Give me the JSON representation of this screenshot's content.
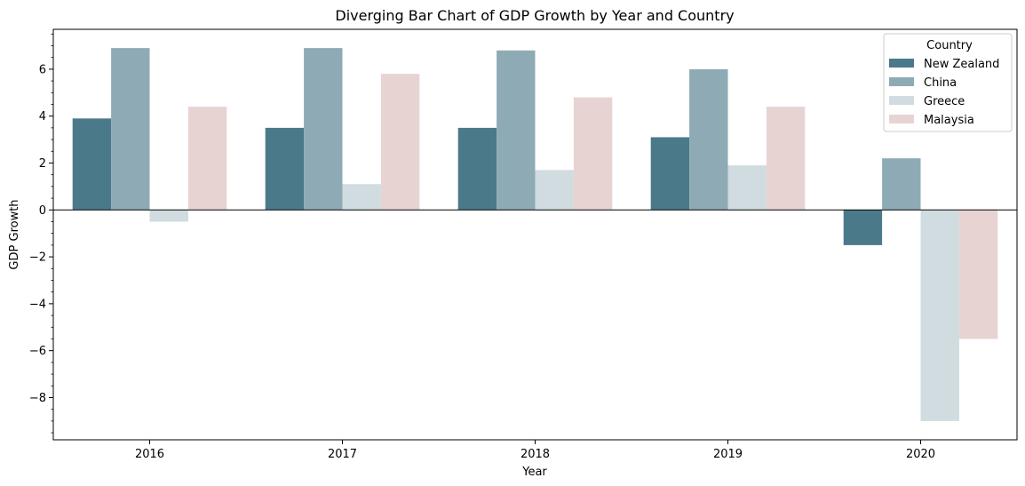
{
  "chart_data": {
    "type": "bar",
    "title": "Diverging Bar Chart of GDP Growth by Year and Country",
    "xlabel": "Year",
    "ylabel": "GDP Growth",
    "categories": [
      "2016",
      "2017",
      "2018",
      "2019",
      "2020"
    ],
    "ylim": [
      -9.8,
      7.7
    ],
    "yticks": [
      -8,
      -6,
      -4,
      -2,
      0,
      2,
      4,
      6
    ],
    "legend": {
      "title": "Country",
      "placement": "top-right"
    },
    "series": [
      {
        "name": "New Zealand",
        "color": "#4a7a8a",
        "values": [
          3.9,
          3.5,
          3.5,
          3.1,
          -1.5
        ]
      },
      {
        "name": "China",
        "color": "#8eabb5",
        "values": [
          6.9,
          6.9,
          6.8,
          6.0,
          2.2
        ]
      },
      {
        "name": "Greece",
        "color": "#d0dcdf",
        "values": [
          -0.5,
          1.1,
          1.7,
          1.9,
          -9.0
        ]
      },
      {
        "name": "Malaysia",
        "color": "#e7d4d2",
        "values": [
          4.4,
          5.8,
          4.8,
          4.4,
          -5.5
        ]
      }
    ]
  }
}
